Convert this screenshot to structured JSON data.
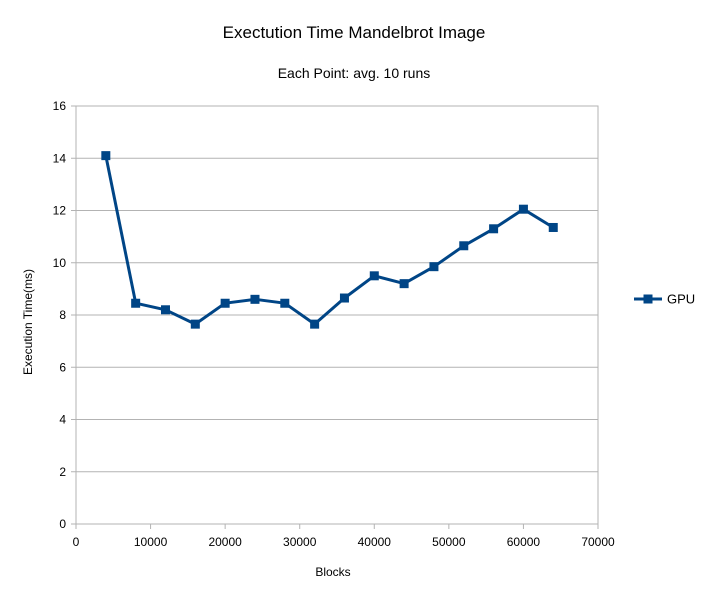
{
  "chart_data": {
    "type": "line",
    "title": "Exectution Time Mandelbrot Image",
    "subtitle": "Each Point: avg. 10 runs",
    "xlabel": "Blocks",
    "ylabel": "Execution Time(ms)",
    "xlim": [
      0,
      70000
    ],
    "ylim": [
      0,
      16
    ],
    "xticks": [
      0,
      10000,
      20000,
      30000,
      40000,
      50000,
      60000,
      70000
    ],
    "yticks": [
      0,
      2,
      4,
      6,
      8,
      10,
      12,
      14,
      16
    ],
    "grid": "horizontal",
    "legend": "right",
    "series": [
      {
        "name": "GPU",
        "color": "#004586",
        "marker": "square",
        "x": [
          4000,
          8000,
          12000,
          16000,
          20000,
          24000,
          28000,
          32000,
          36000,
          40000,
          44000,
          48000,
          52000,
          56000,
          60000,
          64000
        ],
        "y": [
          14.1,
          8.45,
          8.2,
          7.65,
          8.45,
          8.6,
          8.45,
          7.65,
          8.65,
          9.5,
          9.2,
          9.85,
          10.65,
          11.3,
          12.05,
          11.35
        ]
      }
    ]
  }
}
